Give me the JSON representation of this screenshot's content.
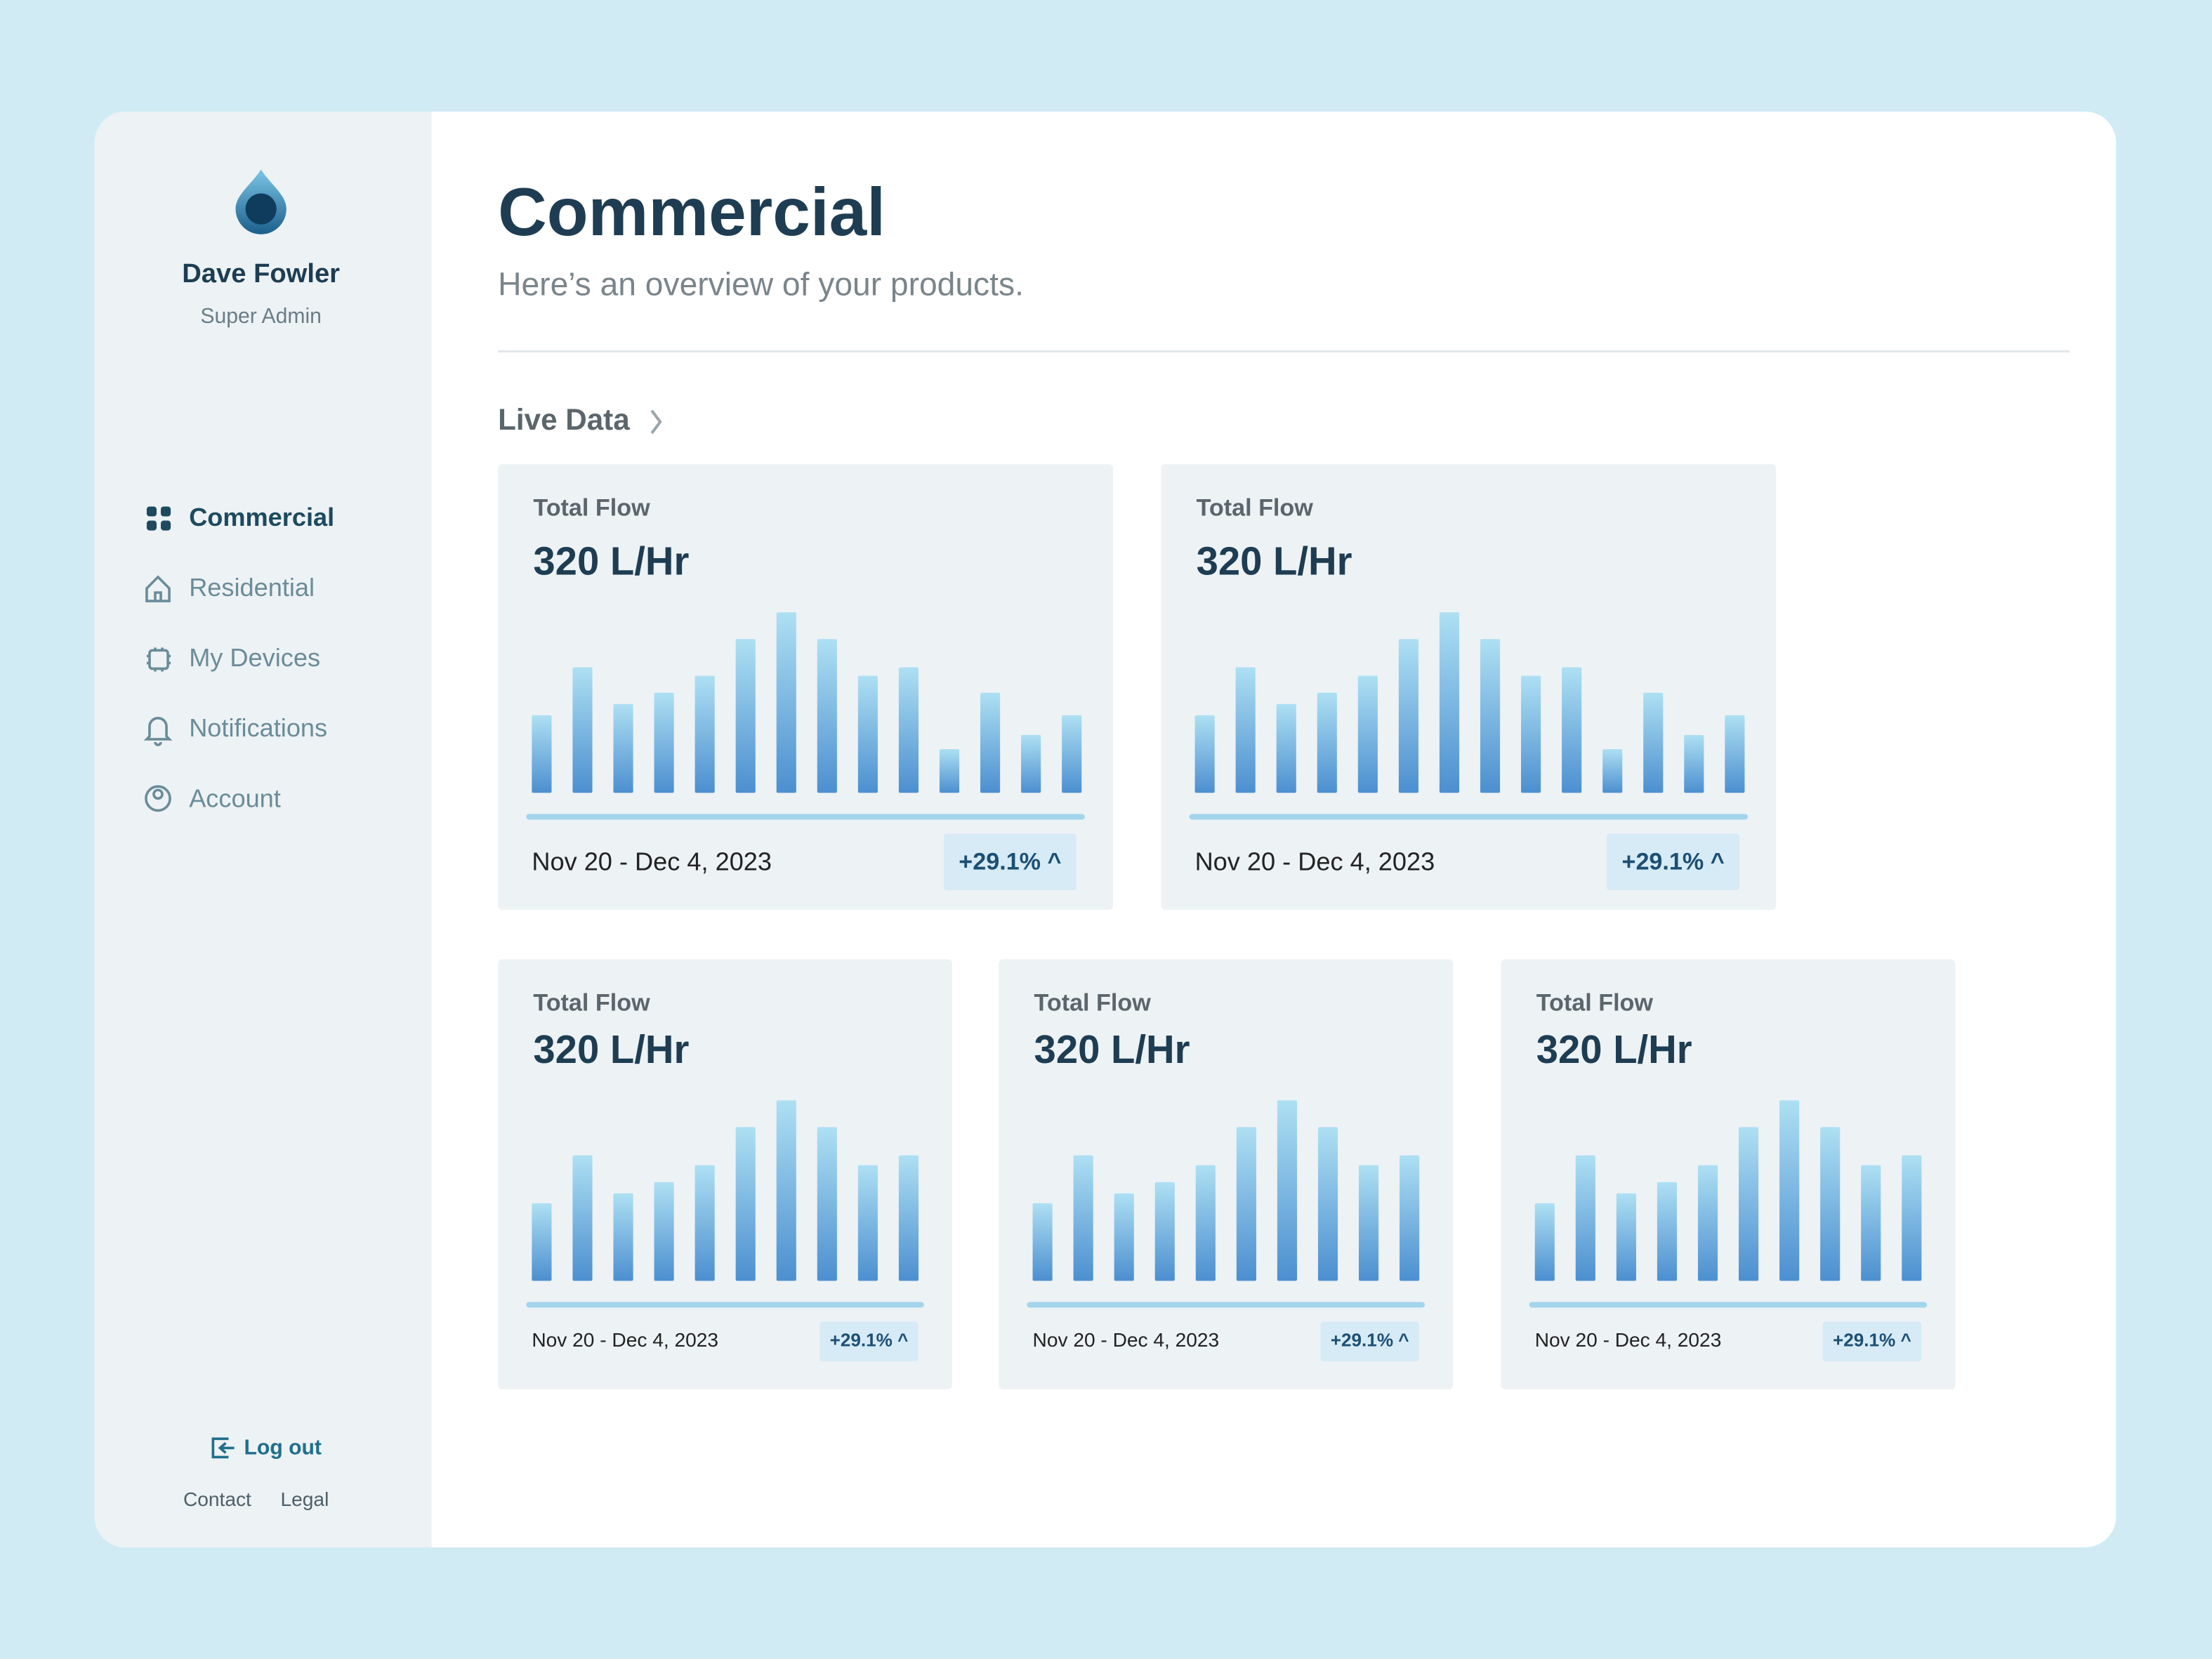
{
  "sidebar": {
    "user": {
      "name": "Dave Fowler",
      "role": "Super Admin"
    },
    "nav": [
      "Commercial",
      "Residential",
      "My Devices",
      "Notifications",
      "Account"
    ],
    "logout": "Log out",
    "links": [
      "Contact",
      "Legal"
    ]
  },
  "header": {
    "title": "Commercial",
    "subtitle": "Here’s an overview of your products."
  },
  "section": "Live Data",
  "cards": [
    {
      "label": "Total Flow",
      "value": "320 L/Hr",
      "date_range": "Nov 20 - Dec 4, 2023",
      "change": "+29.1% ^",
      "chart": {
        "type": "bar",
        "values": [
          55,
          89,
          63,
          71,
          83,
          109,
          128,
          109,
          83,
          89,
          31,
          71,
          41,
          55
        ]
      }
    },
    {
      "label": "Total Flow",
      "value": "320 L/Hr",
      "date_range": "Nov 20 - Dec 4, 2023",
      "change": "+29.1% ^",
      "chart": {
        "type": "bar",
        "values": [
          55,
          89,
          63,
          71,
          83,
          109,
          128,
          109,
          83,
          89,
          31,
          71,
          41,
          55
        ]
      }
    },
    {
      "label": "Total Flow",
      "value": "320 L/Hr",
      "date_range": "Nov 20 - Dec 4, 2023",
      "change": "+29.1% ^",
      "chart": {
        "type": "bar",
        "values": [
          55,
          89,
          62,
          70,
          82,
          109,
          128,
          109,
          82,
          89
        ]
      }
    },
    {
      "label": "Total Flow",
      "value": "320 L/Hr",
      "date_range": "Nov 20 - Dec 4, 2023",
      "change": "+29.1% ^",
      "chart": {
        "type": "bar",
        "values": [
          55,
          89,
          62,
          70,
          82,
          109,
          128,
          109,
          82,
          89
        ]
      }
    },
    {
      "label": "Total Flow",
      "value": "320 L/Hr",
      "date_range": "Nov 20 - Dec 4, 2023",
      "change": "+29.1% ^",
      "chart": {
        "type": "bar",
        "values": [
          55,
          89,
          62,
          70,
          82,
          109,
          128,
          109,
          82,
          89
        ]
      }
    }
  ]
}
